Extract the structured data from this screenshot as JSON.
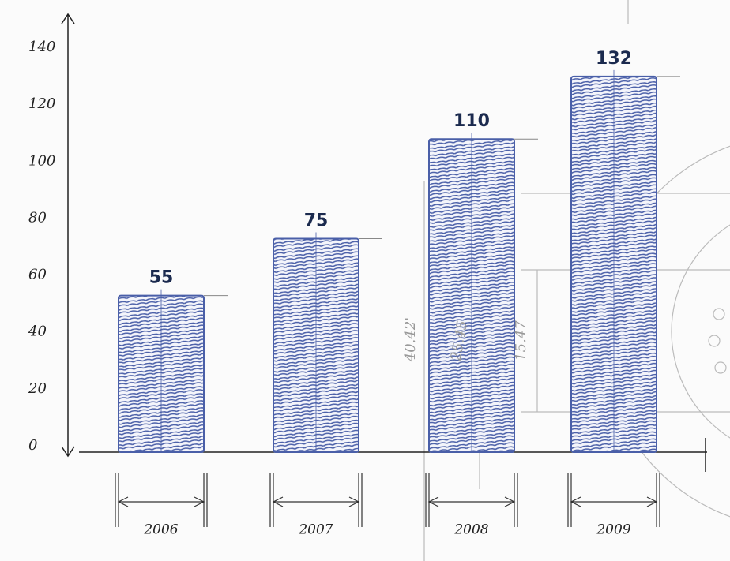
{
  "chart_data": {
    "type": "bar",
    "categories": [
      "2006",
      "2007",
      "2008",
      "2009"
    ],
    "values": [
      55,
      75,
      110,
      132
    ],
    "color": "#4a5fa8",
    "label_color": "#1b2a4e",
    "ylim": [
      0,
      140
    ],
    "yticks": [
      0,
      20,
      40,
      60,
      80,
      100,
      120,
      140
    ],
    "grid": false,
    "annotations": [
      "40.42'",
      "15.47",
      "25.45"
    ]
  }
}
